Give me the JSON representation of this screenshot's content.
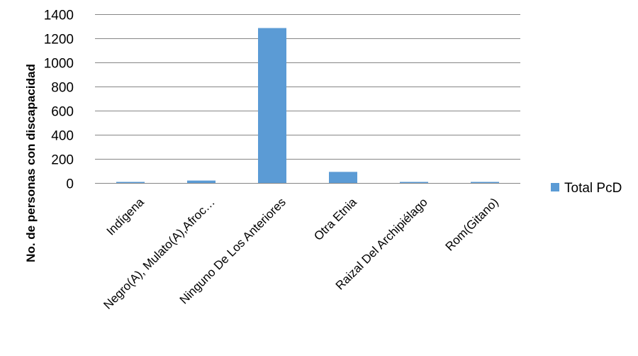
{
  "chart_data": {
    "type": "bar",
    "categories": [
      "Indígena",
      "Negro(A), Mulato(A),Afroc…",
      "Ninguno De Los Anteriores",
      "Otra Etnia",
      "Raizal Del Archipiélago",
      "Rom(Gitano)"
    ],
    "series": [
      {
        "name": "Total PcD",
        "values": [
          2,
          20,
          1285,
          92,
          1,
          8
        ],
        "color": "#5b9bd5"
      }
    ],
    "ylabel": "No. de personas con discapacidad",
    "xlabel": "",
    "ylim": [
      0,
      1400
    ],
    "yticks": [
      0,
      200,
      400,
      600,
      800,
      1000,
      1200,
      1400
    ],
    "grid": true,
    "legend_position": "right"
  }
}
